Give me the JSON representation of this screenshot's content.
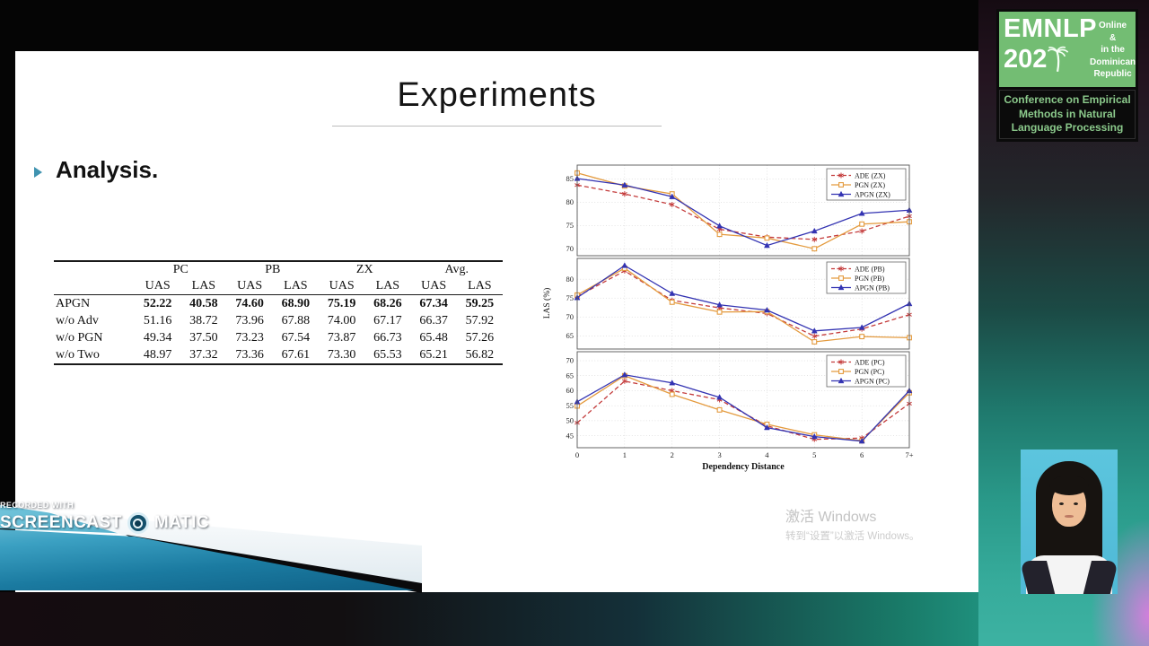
{
  "slide": {
    "title": "Experiments",
    "bullet": "Analysis."
  },
  "table": {
    "group_headers": [
      "PC",
      "PB",
      "ZX",
      "Avg."
    ],
    "sub_headers": [
      "UAS",
      "LAS",
      "UAS",
      "LAS",
      "UAS",
      "LAS",
      "UAS",
      "LAS"
    ],
    "rows": [
      {
        "label": "APGN",
        "bold": true,
        "values": [
          "52.22",
          "40.58",
          "74.60",
          "68.90",
          "75.19",
          "68.26",
          "67.34",
          "59.25"
        ]
      },
      {
        "label": "w/o Adv",
        "bold": false,
        "values": [
          "51.16",
          "38.72",
          "73.96",
          "67.88",
          "74.00",
          "67.17",
          "66.37",
          "57.92"
        ]
      },
      {
        "label": "w/o PGN",
        "bold": false,
        "values": [
          "49.34",
          "37.50",
          "73.23",
          "67.54",
          "73.87",
          "66.73",
          "65.48",
          "57.26"
        ]
      },
      {
        "label": "w/o Two",
        "bold": false,
        "values": [
          "48.97",
          "37.32",
          "73.36",
          "67.61",
          "73.30",
          "65.53",
          "65.21",
          "56.82"
        ]
      }
    ]
  },
  "chart_data": {
    "type": "line",
    "x_labels": [
      "0",
      "1",
      "2",
      "3",
      "4",
      "5",
      "6",
      "7+"
    ],
    "xlabel": "Dependency Distance",
    "ylabel": "LAS (%)",
    "grid": true,
    "legend_position": "top-right",
    "colors": {
      "ADE": "#c43c3c",
      "PGN": "#e49b3f",
      "APGN": "#3333b2"
    },
    "panels": [
      {
        "name": "ZX",
        "ylim": [
          68.5,
          88
        ],
        "yticks": [
          70,
          75,
          80,
          85
        ],
        "series": [
          {
            "key": "ADE",
            "name": "ADE (ZX)",
            "values": [
              83.7,
              81.8,
              79.5,
              74.2,
              72.5,
              72.0,
              73.8,
              77.0
            ]
          },
          {
            "key": "PGN",
            "name": "PGN (ZX)",
            "values": [
              86.3,
              83.5,
              81.8,
              73.1,
              72.3,
              70.0,
              75.3,
              75.8
            ]
          },
          {
            "key": "APGN",
            "name": "APGN (ZX)",
            "values": [
              85.1,
              83.7,
              81.2,
              74.9,
              70.7,
              73.8,
              77.6,
              78.3
            ]
          }
        ]
      },
      {
        "name": "PB",
        "ylim": [
          61.5,
          85.5
        ],
        "yticks": [
          65,
          70,
          75,
          80
        ],
        "series": [
          {
            "key": "ADE",
            "name": "ADE (PB)",
            "values": [
              75.4,
              82.2,
              74.4,
              72.4,
              70.9,
              64.9,
              66.8,
              70.6
            ]
          },
          {
            "key": "PGN",
            "name": "PGN (PB)",
            "values": [
              75.8,
              82.9,
              73.9,
              71.3,
              71.4,
              63.4,
              64.8,
              64.5
            ]
          },
          {
            "key": "APGN",
            "name": "APGN (PB)",
            "values": [
              75.1,
              83.6,
              76.2,
              73.2,
              71.8,
              66.3,
              67.2,
              73.5
            ]
          }
        ]
      },
      {
        "name": "PC",
        "ylim": [
          41,
          73
        ],
        "yticks": [
          45,
          50,
          55,
          60,
          65,
          70
        ],
        "series": [
          {
            "key": "ADE",
            "name": "ADE (PC)",
            "values": [
              49.3,
              63.2,
              60.0,
              57.0,
              48.3,
              43.8,
              44.2,
              55.7
            ]
          },
          {
            "key": "PGN",
            "name": "PGN (PC)",
            "values": [
              54.9,
              65.0,
              58.8,
              53.6,
              48.8,
              45.3,
              43.3,
              59.3
            ]
          },
          {
            "key": "APGN",
            "name": "APGN (PC)",
            "values": [
              56.3,
              65.3,
              62.6,
              57.8,
              47.7,
              44.7,
              43.2,
              60.0
            ]
          }
        ]
      }
    ]
  },
  "emnlp": {
    "line1": "EMNLP",
    "line2": "202",
    "side": [
      "Online",
      "&",
      "in the",
      "Dominican",
      "Republic"
    ],
    "footer": [
      "Conference on Empirical",
      "Methods in Natural",
      "Language Processing"
    ],
    "green": "#73bd73"
  },
  "windows_watermark": {
    "line1": "激活 Windows",
    "line2": "转到“设置”以激活 Windows。"
  },
  "recorder": {
    "line1": "RECORDED WITH",
    "brand_left": "SCREENCAST",
    "brand_right": "MATIC"
  }
}
